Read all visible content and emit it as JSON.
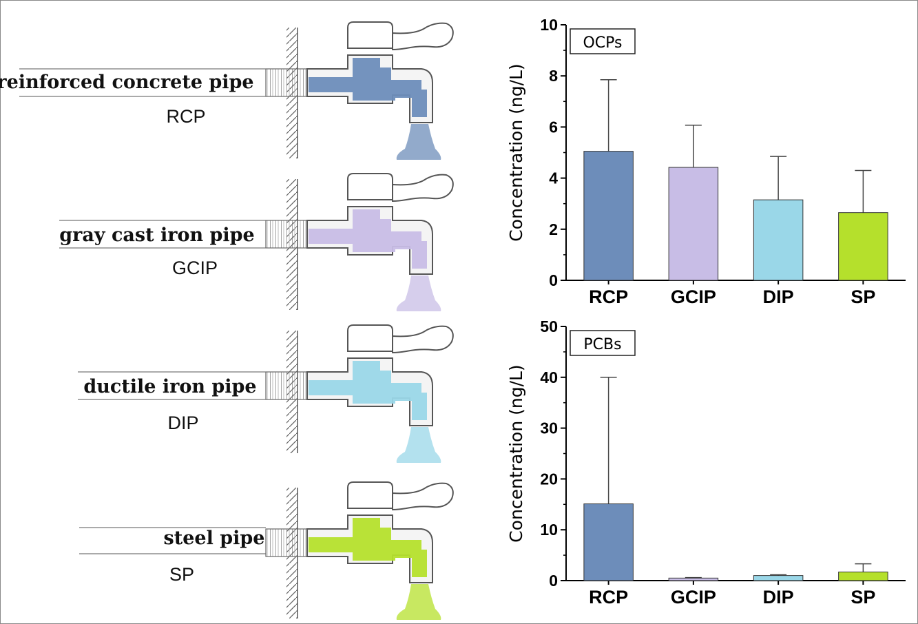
{
  "pipes": [
    {
      "name": "reinforced concrete pipe",
      "abbr": "RCP",
      "color": "#6d8dba"
    },
    {
      "name": "gray cast iron pipe",
      "abbr": "GCIP",
      "color": "#c8bde6"
    },
    {
      "name": "ductile iron pipe",
      "abbr": "DIP",
      "color": "#9ad7e8"
    },
    {
      "name": "steel pipe",
      "abbr": "SP",
      "color": "#b5e02c"
    }
  ],
  "chart_data": [
    {
      "type": "bar",
      "title": "OCPs",
      "ylabel": "Concentration (ng/L)",
      "xlabel": "",
      "categories": [
        "RCP",
        "GCIP",
        "DIP",
        "SP"
      ],
      "values": [
        5.05,
        4.42,
        3.15,
        2.65
      ],
      "error_upper": [
        7.85,
        6.07,
        4.85,
        4.3
      ],
      "ylim": [
        0,
        10
      ],
      "yticks": [
        0,
        2,
        4,
        6,
        8,
        10
      ],
      "colors": [
        "#6d8dba",
        "#c8bde6",
        "#9ad7e8",
        "#b5e02c"
      ],
      "grid": false
    },
    {
      "type": "bar",
      "title": "PCBs",
      "ylabel": "Concentration (ng/L)",
      "xlabel": "",
      "categories": [
        "RCP",
        "GCIP",
        "DIP",
        "SP"
      ],
      "values": [
        15.1,
        0.5,
        1.0,
        1.7
      ],
      "error_upper": [
        40.0,
        0.6,
        1.15,
        3.3
      ],
      "ylim": [
        0,
        50
      ],
      "yticks": [
        0,
        10,
        20,
        30,
        40,
        50
      ],
      "colors": [
        "#6d8dba",
        "#c8bde6",
        "#9ad7e8",
        "#b5e02c"
      ],
      "grid": false
    }
  ]
}
